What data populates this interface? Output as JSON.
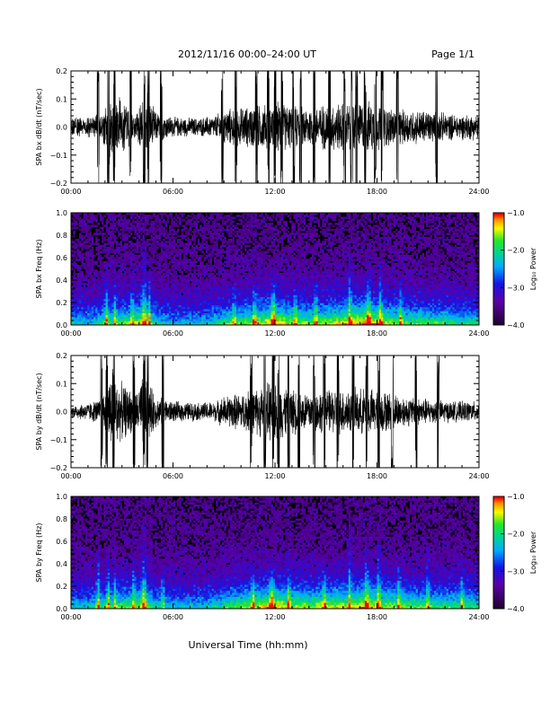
{
  "header": {
    "title": "2012/11/16  00:00–24:00 UT",
    "page": "Page 1/1"
  },
  "footer": {
    "xlabel": "Universal Time (hh:mm)"
  },
  "colors": {
    "trace": "#000000",
    "spectrogram_background": "#000000",
    "axis": "#000000"
  },
  "chart_data": [
    {
      "type": "line",
      "ylabel": "SPA bx dB/dt (nT/sec)",
      "xlim": [
        0,
        24
      ],
      "ylim": [
        -0.2,
        0.2
      ],
      "xticks": [
        "00:00",
        "06:00",
        "12:00",
        "18:00",
        "24:00"
      ],
      "yticks": [
        "−0.2",
        "−0.1",
        "0.0",
        "0.1",
        "0.2"
      ],
      "activity": [
        {
          "t": 0.0,
          "a": 0.035
        },
        {
          "t": 1.0,
          "a": 0.04
        },
        {
          "t": 1.8,
          "a": 0.05
        },
        {
          "t": 2.2,
          "a": 0.12
        },
        {
          "t": 3.0,
          "a": 0.12
        },
        {
          "t": 3.8,
          "a": 0.06
        },
        {
          "t": 4.3,
          "a": 0.13
        },
        {
          "t": 5.0,
          "a": 0.06
        },
        {
          "t": 6.0,
          "a": 0.04
        },
        {
          "t": 7.5,
          "a": 0.035
        },
        {
          "t": 8.5,
          "a": 0.045
        },
        {
          "t": 9.0,
          "a": 0.07
        },
        {
          "t": 10.5,
          "a": 0.08
        },
        {
          "t": 11.5,
          "a": 0.09
        },
        {
          "t": 12.0,
          "a": 0.1
        },
        {
          "t": 13.0,
          "a": 0.085
        },
        {
          "t": 14.0,
          "a": 0.08
        },
        {
          "t": 15.0,
          "a": 0.09
        },
        {
          "t": 16.5,
          "a": 0.1
        },
        {
          "t": 17.5,
          "a": 0.1
        },
        {
          "t": 18.5,
          "a": 0.08
        },
        {
          "t": 19.5,
          "a": 0.07
        },
        {
          "t": 21.0,
          "a": 0.065
        },
        {
          "t": 22.5,
          "a": 0.05
        },
        {
          "t": 24.0,
          "a": 0.05
        }
      ],
      "spikes": [
        1.6,
        2.2,
        2.55,
        3.5,
        4.3,
        4.55,
        5.3,
        8.9,
        9.7,
        10.9,
        11.6,
        12.0,
        12.4,
        13.1,
        13.5,
        14.3,
        15.2,
        16.1,
        16.5,
        16.8,
        17.3,
        17.9,
        18.3,
        19.2,
        21.5
      ]
    },
    {
      "type": "heatmap",
      "ylabel": "SPA bx Freq (Hz)",
      "xlim": [
        0,
        24
      ],
      "ylim": [
        0.0,
        1.0
      ],
      "xticks": [
        "00:00",
        "06:00",
        "12:00",
        "18:00",
        "24:00"
      ],
      "yticks": [
        "0.0",
        "0.2",
        "0.4",
        "0.6",
        "0.8",
        "1.0"
      ],
      "colorbar": {
        "label": "Log₁₀ Power",
        "range": [
          -4.0,
          -1.0
        ],
        "ticks": [
          "−1.0",
          "−2.0",
          "−3.0",
          "−4.0"
        ]
      },
      "activity": [
        {
          "t": 0.0,
          "a": 0.45
        },
        {
          "t": 1.0,
          "a": 0.42
        },
        {
          "t": 2.0,
          "a": 0.55
        },
        {
          "t": 3.0,
          "a": 0.6
        },
        {
          "t": 4.3,
          "a": 0.72
        },
        {
          "t": 5.0,
          "a": 0.5
        },
        {
          "t": 6.0,
          "a": 0.4
        },
        {
          "t": 8.0,
          "a": 0.42
        },
        {
          "t": 9.0,
          "a": 0.55
        },
        {
          "t": 10.0,
          "a": 0.62
        },
        {
          "t": 11.0,
          "a": 0.7
        },
        {
          "t": 12.0,
          "a": 0.78
        },
        {
          "t": 13.0,
          "a": 0.7
        },
        {
          "t": 14.0,
          "a": 0.62
        },
        {
          "t": 15.0,
          "a": 0.68
        },
        {
          "t": 16.5,
          "a": 0.78
        },
        {
          "t": 17.5,
          "a": 0.82
        },
        {
          "t": 18.5,
          "a": 0.7
        },
        {
          "t": 20.0,
          "a": 0.6
        },
        {
          "t": 22.0,
          "a": 0.55
        },
        {
          "t": 24.0,
          "a": 0.5
        }
      ],
      "bursts": [
        {
          "t": 2.1,
          "f": 0.55,
          "w": 0.15
        },
        {
          "t": 2.6,
          "f": 0.45,
          "w": 0.12
        },
        {
          "t": 3.6,
          "f": 0.5,
          "w": 0.12
        },
        {
          "t": 4.3,
          "f": 0.75,
          "w": 0.2
        },
        {
          "t": 4.6,
          "f": 0.5,
          "w": 0.12
        },
        {
          "t": 9.6,
          "f": 0.4,
          "w": 0.15
        },
        {
          "t": 10.8,
          "f": 0.45,
          "w": 0.15
        },
        {
          "t": 11.9,
          "f": 0.5,
          "w": 0.2
        },
        {
          "t": 13.2,
          "f": 0.4,
          "w": 0.15
        },
        {
          "t": 14.4,
          "f": 0.45,
          "w": 0.15
        },
        {
          "t": 16.4,
          "f": 0.8,
          "w": 0.15
        },
        {
          "t": 17.5,
          "f": 0.65,
          "w": 0.2
        },
        {
          "t": 18.2,
          "f": 0.6,
          "w": 0.15
        },
        {
          "t": 19.4,
          "f": 0.45,
          "w": 0.15
        }
      ]
    },
    {
      "type": "line",
      "ylabel": "SPA by dB/dt (nT/sec)",
      "xlim": [
        0,
        24
      ],
      "ylim": [
        -0.2,
        0.2
      ],
      "xticks": [
        "00:00",
        "06:00",
        "12:00",
        "18:00",
        "24:00"
      ],
      "yticks": [
        "−0.2",
        "−0.1",
        "0.0",
        "0.1",
        "0.2"
      ],
      "activity": [
        {
          "t": 0.0,
          "a": 0.025
        },
        {
          "t": 1.0,
          "a": 0.035
        },
        {
          "t": 1.8,
          "a": 0.05
        },
        {
          "t": 2.2,
          "a": 0.14
        },
        {
          "t": 3.0,
          "a": 0.11
        },
        {
          "t": 3.8,
          "a": 0.07
        },
        {
          "t": 4.3,
          "a": 0.15
        },
        {
          "t": 5.0,
          "a": 0.06
        },
        {
          "t": 6.0,
          "a": 0.04
        },
        {
          "t": 7.5,
          "a": 0.035
        },
        {
          "t": 8.5,
          "a": 0.04
        },
        {
          "t": 9.0,
          "a": 0.06
        },
        {
          "t": 10.5,
          "a": 0.08
        },
        {
          "t": 11.5,
          "a": 0.11
        },
        {
          "t": 12.0,
          "a": 0.12
        },
        {
          "t": 13.0,
          "a": 0.09
        },
        {
          "t": 14.0,
          "a": 0.08
        },
        {
          "t": 15.0,
          "a": 0.085
        },
        {
          "t": 16.5,
          "a": 0.09
        },
        {
          "t": 17.5,
          "a": 0.09
        },
        {
          "t": 18.5,
          "a": 0.08
        },
        {
          "t": 19.5,
          "a": 0.06
        },
        {
          "t": 21.0,
          "a": 0.05
        },
        {
          "t": 22.5,
          "a": 0.04
        },
        {
          "t": 24.0,
          "a": 0.04
        }
      ],
      "spikes": [
        1.8,
        2.1,
        2.5,
        3.7,
        4.3,
        4.5,
        5.4,
        10.6,
        11.4,
        11.9,
        12.2,
        12.8,
        13.4,
        14.3,
        14.9,
        15.7,
        16.6,
        17.4,
        18.1,
        18.9,
        20.3,
        21.6
      ]
    },
    {
      "type": "heatmap",
      "ylabel": "SPA by Freq (Hz)",
      "xlim": [
        0,
        24
      ],
      "ylim": [
        0.0,
        1.0
      ],
      "xticks": [
        "00:00",
        "06:00",
        "12:00",
        "18:00",
        "24:00"
      ],
      "yticks": [
        "0.0",
        "0.2",
        "0.4",
        "0.6",
        "0.8",
        "1.0"
      ],
      "colorbar": {
        "label": "Log₁₀ Power",
        "range": [
          -4.0,
          -1.0
        ],
        "ticks": [
          "−1.0",
          "−2.0",
          "−3.0",
          "−4.0"
        ]
      },
      "activity": [
        {
          "t": 0.0,
          "a": 0.45
        },
        {
          "t": 1.0,
          "a": 0.45
        },
        {
          "t": 2.0,
          "a": 0.58
        },
        {
          "t": 3.0,
          "a": 0.6
        },
        {
          "t": 4.3,
          "a": 0.72
        },
        {
          "t": 5.0,
          "a": 0.5
        },
        {
          "t": 6.0,
          "a": 0.42
        },
        {
          "t": 8.0,
          "a": 0.45
        },
        {
          "t": 9.0,
          "a": 0.55
        },
        {
          "t": 10.0,
          "a": 0.65
        },
        {
          "t": 11.0,
          "a": 0.72
        },
        {
          "t": 12.0,
          "a": 0.8
        },
        {
          "t": 13.0,
          "a": 0.72
        },
        {
          "t": 14.0,
          "a": 0.68
        },
        {
          "t": 15.0,
          "a": 0.7
        },
        {
          "t": 16.5,
          "a": 0.75
        },
        {
          "t": 17.5,
          "a": 0.78
        },
        {
          "t": 18.5,
          "a": 0.7
        },
        {
          "t": 20.0,
          "a": 0.62
        },
        {
          "t": 22.0,
          "a": 0.58
        },
        {
          "t": 24.0,
          "a": 0.55
        }
      ],
      "bursts": [
        {
          "t": 1.6,
          "f": 0.6,
          "w": 0.15
        },
        {
          "t": 2.2,
          "f": 0.55,
          "w": 0.15
        },
        {
          "t": 2.6,
          "f": 0.5,
          "w": 0.12
        },
        {
          "t": 3.7,
          "f": 0.5,
          "w": 0.12
        },
        {
          "t": 4.3,
          "f": 0.8,
          "w": 0.2
        },
        {
          "t": 5.4,
          "f": 0.45,
          "w": 0.12
        },
        {
          "t": 10.7,
          "f": 0.4,
          "w": 0.15
        },
        {
          "t": 11.8,
          "f": 0.45,
          "w": 0.2
        },
        {
          "t": 12.8,
          "f": 0.4,
          "w": 0.15
        },
        {
          "t": 14.9,
          "f": 0.45,
          "w": 0.15
        },
        {
          "t": 16.4,
          "f": 0.85,
          "w": 0.12
        },
        {
          "t": 17.4,
          "f": 0.6,
          "w": 0.2
        },
        {
          "t": 18.1,
          "f": 0.8,
          "w": 0.15
        },
        {
          "t": 19.3,
          "f": 0.45,
          "w": 0.15
        },
        {
          "t": 21.0,
          "f": 0.6,
          "w": 0.15
        },
        {
          "t": 23.0,
          "f": 0.4,
          "w": 0.15
        }
      ]
    }
  ]
}
